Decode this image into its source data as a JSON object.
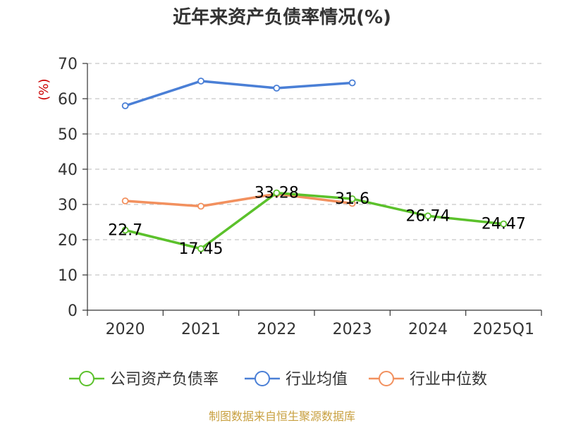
{
  "chart_data": {
    "type": "line",
    "title": "近年来资产负债率情况(%)",
    "ylabel": "(%)",
    "ylim": [
      0,
      70
    ],
    "yticks": [
      0,
      10,
      20,
      30,
      40,
      50,
      60,
      70
    ],
    "categories": [
      "2020",
      "2021",
      "2022",
      "2023",
      "2024",
      "2025Q1"
    ],
    "grid": true,
    "legend_position": "bottom",
    "series": [
      {
        "name": "公司资产负债率",
        "color": "#5bc12b",
        "values": [
          22.7,
          17.45,
          33.28,
          31.6,
          26.74,
          24.47
        ],
        "labels": [
          "22.7",
          "17.45",
          "33.28",
          "31.6",
          "26.74",
          "24.47"
        ]
      },
      {
        "name": "行业均值",
        "color": "#4a7fd6",
        "values": [
          58,
          65,
          63,
          64.5,
          null,
          null
        ]
      },
      {
        "name": "行业中位数",
        "color": "#f2905e",
        "values": [
          31,
          29.5,
          33,
          30.3,
          null,
          null
        ]
      }
    ]
  },
  "footer": {
    "source": "制图数据来自恒生聚源数据库"
  }
}
